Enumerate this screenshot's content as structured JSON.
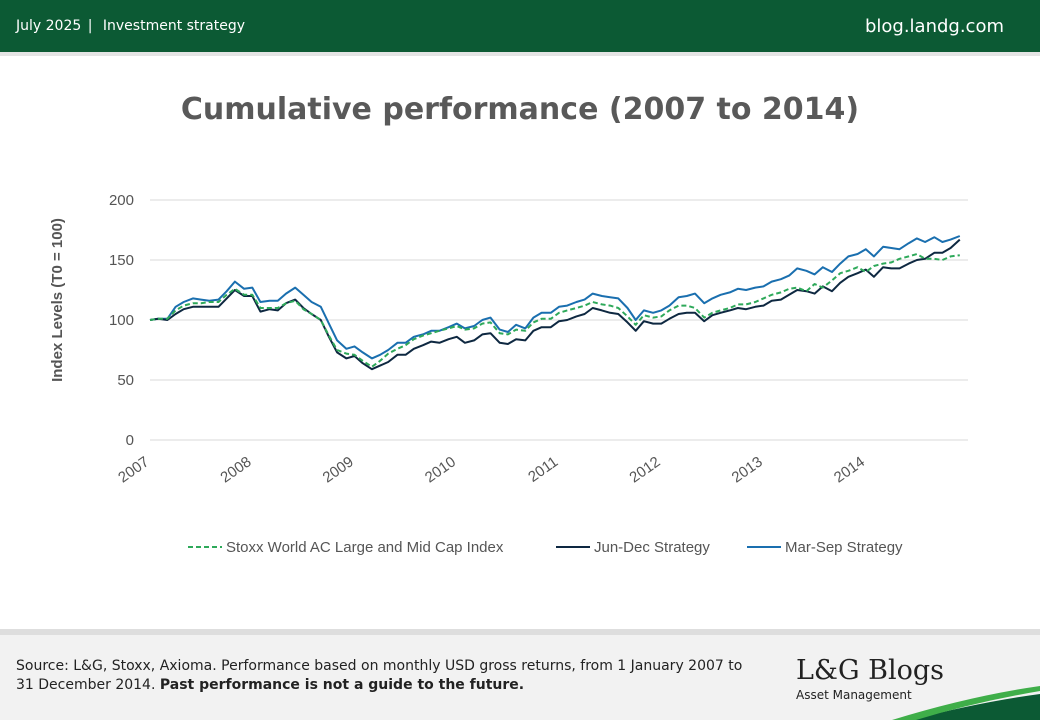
{
  "header": {
    "date": "July 2025",
    "separator": "|",
    "category": "Investment strategy",
    "site": "blog.landg.com"
  },
  "footer": {
    "source_text": "Source: L&G, Stoxx, Axioma. Performance based on monthly USD gross returns, from 1 January 2007 to 31 December 2014.",
    "disclaimer": "Past performance is not a guide to the future.",
    "logo_brand": "L&G Blogs",
    "logo_sub": "Asset Management"
  },
  "colors": {
    "header_bg": "#0c5a34",
    "stoxx": "#2ea95a",
    "jundec": "#0e2841",
    "marsep": "#1a6faf"
  },
  "chart_data": {
    "type": "line",
    "title": "Cumulative performance (2007 to 2014)",
    "ylabel": "Index Levels (T0 = 100)",
    "xlabel": "",
    "ylim": [
      0,
      200
    ],
    "yticks": [
      0,
      50,
      100,
      150,
      200
    ],
    "xlim": [
      2007,
      2015
    ],
    "xticks": [
      {
        "value": 2007,
        "label": "2007"
      },
      {
        "value": 2008,
        "label": "2008"
      },
      {
        "value": 2009,
        "label": "2009"
      },
      {
        "value": 2010,
        "label": "2010"
      },
      {
        "value": 2011,
        "label": "2011"
      },
      {
        "value": 2012,
        "label": "2012"
      },
      {
        "value": 2013,
        "label": "2013"
      },
      {
        "value": 2014,
        "label": "2014"
      }
    ],
    "grid": "horizontal",
    "legend_position": "bottom",
    "series": [
      {
        "name": "Stoxx World AC Large and Mid Cap Index",
        "style": "dashed",
        "points": [
          [
            2007.0,
            100
          ],
          [
            2007.08,
            101
          ],
          [
            2007.17,
            101
          ],
          [
            2007.25,
            108
          ],
          [
            2007.33,
            112
          ],
          [
            2007.42,
            114
          ],
          [
            2007.5,
            114
          ],
          [
            2007.58,
            115
          ],
          [
            2007.67,
            115
          ],
          [
            2007.75,
            121
          ],
          [
            2007.83,
            126
          ],
          [
            2007.92,
            121
          ],
          [
            2008.0,
            121
          ],
          [
            2008.08,
            110
          ],
          [
            2008.17,
            110
          ],
          [
            2008.25,
            110
          ],
          [
            2008.33,
            114
          ],
          [
            2008.42,
            116
          ],
          [
            2008.5,
            109
          ],
          [
            2008.58,
            105
          ],
          [
            2008.67,
            100
          ],
          [
            2008.75,
            87
          ],
          [
            2008.83,
            75
          ],
          [
            2008.92,
            72
          ],
          [
            2009.0,
            71
          ],
          [
            2009.08,
            66
          ],
          [
            2009.17,
            61
          ],
          [
            2009.25,
            66
          ],
          [
            2009.33,
            72
          ],
          [
            2009.42,
            76
          ],
          [
            2009.5,
            79
          ],
          [
            2009.58,
            84
          ],
          [
            2009.67,
            87
          ],
          [
            2009.75,
            89
          ],
          [
            2009.83,
            91
          ],
          [
            2009.92,
            93
          ],
          [
            2010.0,
            95
          ],
          [
            2010.08,
            92
          ],
          [
            2010.17,
            93
          ],
          [
            2010.25,
            97
          ],
          [
            2010.33,
            98
          ],
          [
            2010.42,
            89
          ],
          [
            2010.5,
            88
          ],
          [
            2010.58,
            92
          ],
          [
            2010.67,
            91
          ],
          [
            2010.75,
            98
          ],
          [
            2010.83,
            101
          ],
          [
            2010.92,
            101
          ],
          [
            2011.0,
            106
          ],
          [
            2011.08,
            108
          ],
          [
            2011.17,
            110
          ],
          [
            2011.25,
            112
          ],
          [
            2011.33,
            115
          ],
          [
            2011.42,
            113
          ],
          [
            2011.5,
            112
          ],
          [
            2011.58,
            110
          ],
          [
            2011.67,
            103
          ],
          [
            2011.75,
            96
          ],
          [
            2011.83,
            104
          ],
          [
            2011.92,
            102
          ],
          [
            2012.0,
            103
          ],
          [
            2012.08,
            108
          ],
          [
            2012.17,
            112
          ],
          [
            2012.25,
            112
          ],
          [
            2012.33,
            110
          ],
          [
            2012.42,
            102
          ],
          [
            2012.5,
            106
          ],
          [
            2012.58,
            108
          ],
          [
            2012.67,
            110
          ],
          [
            2012.75,
            113
          ],
          [
            2012.83,
            113
          ],
          [
            2012.92,
            115
          ],
          [
            2013.0,
            118
          ],
          [
            2013.08,
            121
          ],
          [
            2013.17,
            123
          ],
          [
            2013.25,
            126
          ],
          [
            2013.33,
            127
          ],
          [
            2013.42,
            124
          ],
          [
            2013.5,
            130
          ],
          [
            2013.58,
            127
          ],
          [
            2013.67,
            133
          ],
          [
            2013.75,
            139
          ],
          [
            2013.83,
            141
          ],
          [
            2013.92,
            144
          ],
          [
            2014.0,
            140
          ],
          [
            2014.08,
            145
          ],
          [
            2014.17,
            147
          ],
          [
            2014.25,
            148
          ],
          [
            2014.33,
            151
          ],
          [
            2014.42,
            153
          ],
          [
            2014.5,
            155
          ],
          [
            2014.58,
            151
          ],
          [
            2014.67,
            151
          ],
          [
            2014.75,
            150
          ],
          [
            2014.83,
            153
          ],
          [
            2014.92,
            154
          ]
        ]
      },
      {
        "name": "Jun-Dec Strategy",
        "style": "solid",
        "points": [
          [
            2007.0,
            100
          ],
          [
            2007.08,
            101
          ],
          [
            2007.17,
            100
          ],
          [
            2007.25,
            105
          ],
          [
            2007.33,
            109
          ],
          [
            2007.42,
            111
          ],
          [
            2007.5,
            111
          ],
          [
            2007.58,
            111
          ],
          [
            2007.67,
            111
          ],
          [
            2007.75,
            118
          ],
          [
            2007.83,
            125
          ],
          [
            2007.92,
            120
          ],
          [
            2008.0,
            120
          ],
          [
            2008.08,
            107
          ],
          [
            2008.17,
            109
          ],
          [
            2008.25,
            108
          ],
          [
            2008.33,
            114
          ],
          [
            2008.42,
            117
          ],
          [
            2008.5,
            110
          ],
          [
            2008.58,
            105
          ],
          [
            2008.67,
            100
          ],
          [
            2008.75,
            86
          ],
          [
            2008.83,
            73
          ],
          [
            2008.92,
            68
          ],
          [
            2009.0,
            70
          ],
          [
            2009.08,
            64
          ],
          [
            2009.17,
            59
          ],
          [
            2009.25,
            62
          ],
          [
            2009.33,
            65
          ],
          [
            2009.42,
            71
          ],
          [
            2009.5,
            71
          ],
          [
            2009.58,
            76
          ],
          [
            2009.67,
            79
          ],
          [
            2009.75,
            82
          ],
          [
            2009.83,
            81
          ],
          [
            2009.92,
            84
          ],
          [
            2010.0,
            86
          ],
          [
            2010.08,
            81
          ],
          [
            2010.17,
            83
          ],
          [
            2010.25,
            88
          ],
          [
            2010.33,
            89
          ],
          [
            2010.42,
            81
          ],
          [
            2010.5,
            80
          ],
          [
            2010.58,
            84
          ],
          [
            2010.67,
            83
          ],
          [
            2010.75,
            91
          ],
          [
            2010.83,
            94
          ],
          [
            2010.92,
            94
          ],
          [
            2011.0,
            99
          ],
          [
            2011.08,
            100
          ],
          [
            2011.17,
            103
          ],
          [
            2011.25,
            105
          ],
          [
            2011.33,
            110
          ],
          [
            2011.42,
            108
          ],
          [
            2011.5,
            106
          ],
          [
            2011.58,
            105
          ],
          [
            2011.67,
            98
          ],
          [
            2011.75,
            91
          ],
          [
            2011.83,
            99
          ],
          [
            2011.92,
            97
          ],
          [
            2012.0,
            97
          ],
          [
            2012.08,
            101
          ],
          [
            2012.17,
            105
          ],
          [
            2012.25,
            106
          ],
          [
            2012.33,
            106
          ],
          [
            2012.42,
            99
          ],
          [
            2012.5,
            104
          ],
          [
            2012.58,
            106
          ],
          [
            2012.67,
            108
          ],
          [
            2012.75,
            110
          ],
          [
            2012.83,
            109
          ],
          [
            2012.92,
            111
          ],
          [
            2013.0,
            112
          ],
          [
            2013.08,
            116
          ],
          [
            2013.17,
            117
          ],
          [
            2013.25,
            121
          ],
          [
            2013.33,
            125
          ],
          [
            2013.42,
            124
          ],
          [
            2013.5,
            122
          ],
          [
            2013.58,
            128
          ],
          [
            2013.67,
            124
          ],
          [
            2013.75,
            131
          ],
          [
            2013.83,
            136
          ],
          [
            2013.92,
            139
          ],
          [
            2014.0,
            142
          ],
          [
            2014.08,
            136
          ],
          [
            2014.17,
            144
          ],
          [
            2014.25,
            143
          ],
          [
            2014.33,
            143
          ],
          [
            2014.42,
            147
          ],
          [
            2014.5,
            150
          ],
          [
            2014.58,
            151
          ],
          [
            2014.67,
            156
          ],
          [
            2014.75,
            156
          ],
          [
            2014.83,
            160
          ],
          [
            2014.92,
            167
          ]
        ]
      },
      {
        "name": "Mar-Sep Strategy",
        "style": "solid",
        "points": [
          [
            2007.0,
            100
          ],
          [
            2007.08,
            101
          ],
          [
            2007.17,
            101
          ],
          [
            2007.25,
            111
          ],
          [
            2007.33,
            115
          ],
          [
            2007.42,
            118
          ],
          [
            2007.5,
            117
          ],
          [
            2007.58,
            116
          ],
          [
            2007.67,
            117
          ],
          [
            2007.75,
            124
          ],
          [
            2007.83,
            132
          ],
          [
            2007.92,
            126
          ],
          [
            2008.0,
            127
          ],
          [
            2008.08,
            115
          ],
          [
            2008.17,
            116
          ],
          [
            2008.25,
            116
          ],
          [
            2008.33,
            122
          ],
          [
            2008.42,
            127
          ],
          [
            2008.5,
            121
          ],
          [
            2008.58,
            115
          ],
          [
            2008.67,
            111
          ],
          [
            2008.75,
            97
          ],
          [
            2008.83,
            83
          ],
          [
            2008.92,
            76
          ],
          [
            2009.0,
            78
          ],
          [
            2009.08,
            73
          ],
          [
            2009.17,
            68
          ],
          [
            2009.25,
            71
          ],
          [
            2009.33,
            75
          ],
          [
            2009.42,
            81
          ],
          [
            2009.5,
            81
          ],
          [
            2009.58,
            86
          ],
          [
            2009.67,
            88
          ],
          [
            2009.75,
            91
          ],
          [
            2009.83,
            91
          ],
          [
            2009.92,
            94
          ],
          [
            2010.0,
            97
          ],
          [
            2010.08,
            93
          ],
          [
            2010.17,
            95
          ],
          [
            2010.25,
            100
          ],
          [
            2010.33,
            102
          ],
          [
            2010.42,
            92
          ],
          [
            2010.5,
            90
          ],
          [
            2010.58,
            96
          ],
          [
            2010.67,
            93
          ],
          [
            2010.75,
            102
          ],
          [
            2010.83,
            106
          ],
          [
            2010.92,
            106
          ],
          [
            2011.0,
            111
          ],
          [
            2011.08,
            112
          ],
          [
            2011.17,
            115
          ],
          [
            2011.25,
            117
          ],
          [
            2011.33,
            122
          ],
          [
            2011.42,
            120
          ],
          [
            2011.5,
            119
          ],
          [
            2011.58,
            118
          ],
          [
            2011.67,
            110
          ],
          [
            2011.75,
            100
          ],
          [
            2011.83,
            108
          ],
          [
            2011.92,
            106
          ],
          [
            2012.0,
            108
          ],
          [
            2012.08,
            112
          ],
          [
            2012.17,
            119
          ],
          [
            2012.25,
            120
          ],
          [
            2012.33,
            122
          ],
          [
            2012.42,
            114
          ],
          [
            2012.5,
            118
          ],
          [
            2012.58,
            121
          ],
          [
            2012.67,
            123
          ],
          [
            2012.75,
            126
          ],
          [
            2012.83,
            125
          ],
          [
            2012.92,
            127
          ],
          [
            2013.0,
            128
          ],
          [
            2013.08,
            132
          ],
          [
            2013.17,
            134
          ],
          [
            2013.25,
            137
          ],
          [
            2013.33,
            143
          ],
          [
            2013.42,
            141
          ],
          [
            2013.5,
            138
          ],
          [
            2013.58,
            144
          ],
          [
            2013.67,
            140
          ],
          [
            2013.75,
            147
          ],
          [
            2013.83,
            153
          ],
          [
            2013.92,
            155
          ],
          [
            2014.0,
            159
          ],
          [
            2014.08,
            153
          ],
          [
            2014.17,
            161
          ],
          [
            2014.25,
            160
          ],
          [
            2014.33,
            159
          ],
          [
            2014.42,
            164
          ],
          [
            2014.5,
            168
          ],
          [
            2014.58,
            165
          ],
          [
            2014.67,
            169
          ],
          [
            2014.75,
            165
          ],
          [
            2014.83,
            167
          ],
          [
            2014.92,
            170
          ]
        ]
      }
    ]
  }
}
